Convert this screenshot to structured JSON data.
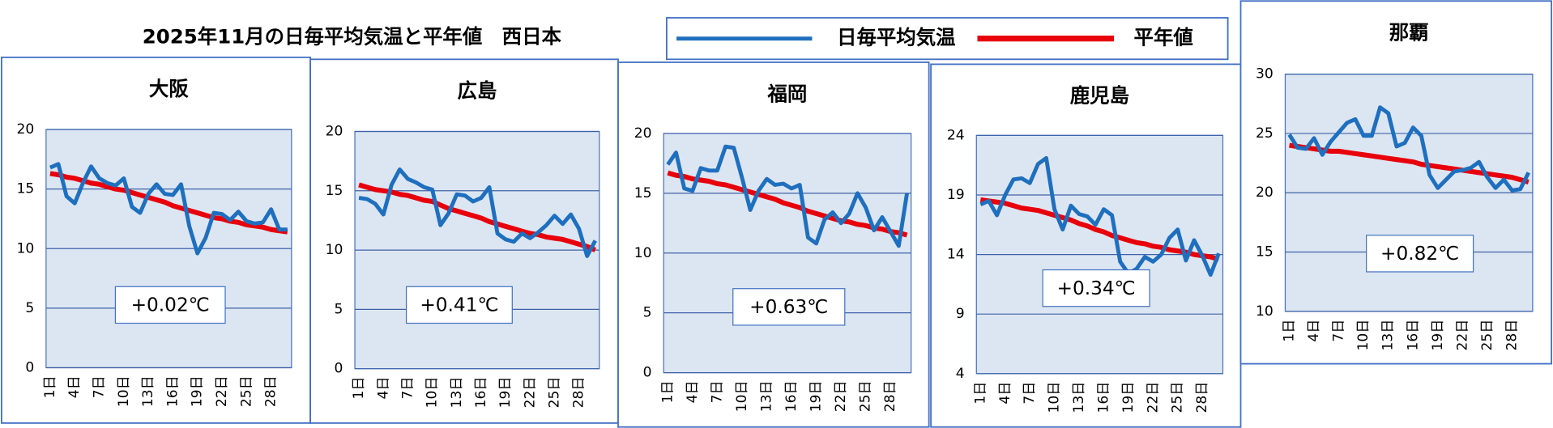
{
  "title": "2025年11月の日毎平均気温と平年値　西日本",
  "chart_data": [
    {
      "type": "line",
      "title": "大阪",
      "categories": [
        "1日",
        null,
        null,
        "4日",
        null,
        null,
        "7日",
        null,
        null,
        "10日",
        null,
        null,
        "13日",
        null,
        null,
        "16日",
        null,
        null,
        "19日",
        null,
        null,
        "22日",
        null,
        null,
        "25日",
        null,
        null,
        "28日",
        null,
        null
      ],
      "series": [
        {
          "name": "日毎平均気温",
          "color": "#1f6fbf",
          "values": [
            16.8,
            17.1,
            14.4,
            13.8,
            15.5,
            16.9,
            15.9,
            15.5,
            15.3,
            15.9,
            13.5,
            13.0,
            14.6,
            15.4,
            14.6,
            14.5,
            15.4,
            11.9,
            9.6,
            10.9,
            13.0,
            12.9,
            12.4,
            13.1,
            12.3,
            12.1,
            12.2,
            13.3,
            11.6,
            11.6
          ]
        },
        {
          "name": "平年値",
          "color": "#e8000b",
          "values": [
            16.3,
            16.2,
            16.0,
            15.9,
            15.7,
            15.5,
            15.4,
            15.2,
            15.0,
            14.9,
            14.7,
            14.5,
            14.3,
            14.1,
            13.9,
            13.6,
            13.4,
            13.2,
            13.0,
            12.8,
            12.6,
            12.5,
            12.3,
            12.2,
            12.0,
            11.9,
            11.8,
            11.6,
            11.5,
            11.4
          ]
        }
      ],
      "ylim": [
        0,
        20
      ],
      "yticks": [
        0,
        5,
        10,
        15,
        20
      ],
      "annotation": "+0.02℃"
    },
    {
      "type": "line",
      "title": "広島",
      "categories": [
        "1日",
        null,
        null,
        "4日",
        null,
        null,
        "7日",
        null,
        null,
        "10日",
        null,
        null,
        "13日",
        null,
        null,
        "16日",
        null,
        null,
        "19日",
        null,
        null,
        "22日",
        null,
        null,
        "25日",
        null,
        null,
        "28日",
        null,
        null
      ],
      "series": [
        {
          "name": "日毎平均気温",
          "color": "#1f6fbf",
          "values": [
            14.4,
            14.3,
            13.9,
            13.0,
            15.5,
            16.8,
            16.0,
            15.7,
            15.3,
            15.1,
            12.1,
            13.1,
            14.7,
            14.6,
            14.1,
            14.4,
            15.3,
            11.4,
            10.9,
            10.7,
            11.4,
            11.0,
            11.5,
            12.1,
            12.9,
            12.2,
            13.0,
            11.8,
            9.5,
            10.8
          ]
        },
        {
          "name": "平年値",
          "color": "#e8000b",
          "values": [
            15.5,
            15.3,
            15.1,
            15.0,
            14.9,
            14.7,
            14.6,
            14.4,
            14.2,
            14.1,
            13.8,
            13.5,
            13.3,
            13.1,
            12.9,
            12.7,
            12.4,
            12.2,
            12.0,
            11.8,
            11.6,
            11.4,
            11.3,
            11.1,
            11.0,
            10.9,
            10.7,
            10.5,
            10.3,
            10.0
          ]
        }
      ],
      "ylim": [
        0,
        20
      ],
      "yticks": [
        0,
        5,
        10,
        15,
        20
      ],
      "annotation": "+0.41℃"
    },
    {
      "type": "line",
      "title": "福岡",
      "categories": [
        "1日",
        null,
        null,
        "4日",
        null,
        null,
        "7日",
        null,
        null,
        "10日",
        null,
        null,
        "13日",
        null,
        null,
        "16日",
        null,
        null,
        "19日",
        null,
        null,
        "22日",
        null,
        null,
        "25日",
        null,
        null,
        "28日",
        null,
        null
      ],
      "series": [
        {
          "name": "日毎平均気温",
          "color": "#1f6fbf",
          "values": [
            17.4,
            18.4,
            15.4,
            15.2,
            17.1,
            16.9,
            16.9,
            18.9,
            18.8,
            16.3,
            13.6,
            15.2,
            16.2,
            15.7,
            15.8,
            15.4,
            15.7,
            11.3,
            10.8,
            12.8,
            13.4,
            12.5,
            13.3,
            15.0,
            13.8,
            11.9,
            13.0,
            11.8,
            10.6,
            15.0
          ]
        },
        {
          "name": "平年値",
          "color": "#e8000b",
          "values": [
            16.7,
            16.5,
            16.4,
            16.2,
            16.1,
            16.0,
            15.8,
            15.7,
            15.5,
            15.3,
            15.1,
            14.9,
            14.7,
            14.5,
            14.2,
            14.0,
            13.8,
            13.5,
            13.3,
            13.1,
            12.9,
            12.7,
            12.6,
            12.4,
            12.3,
            12.1,
            12.0,
            11.8,
            11.7,
            11.5
          ]
        }
      ],
      "ylim": [
        0,
        20
      ],
      "yticks": [
        0,
        5,
        10,
        15,
        20
      ],
      "annotation": "+0.63℃"
    },
    {
      "type": "line",
      "title": "鹿児島",
      "categories": [
        "1日",
        null,
        null,
        "4日",
        null,
        null,
        "7日",
        null,
        null,
        "10日",
        null,
        null,
        "13日",
        null,
        null,
        "16日",
        null,
        null,
        "19日",
        null,
        null,
        "22日",
        null,
        null,
        "25日",
        null,
        null,
        "28日",
        null,
        null
      ],
      "series": [
        {
          "name": "日毎平均気温",
          "color": "#1f6fbf",
          "values": [
            18.2,
            18.5,
            17.3,
            19.0,
            20.3,
            20.4,
            20.0,
            21.6,
            22.1,
            17.8,
            16.1,
            18.1,
            17.4,
            17.2,
            16.5,
            17.8,
            17.3,
            13.4,
            12.4,
            12.8,
            13.8,
            13.4,
            14.0,
            15.4,
            16.1,
            13.5,
            15.2,
            13.9,
            12.3,
            14.1
          ]
        },
        {
          "name": "平年値",
          "color": "#e8000b",
          "values": [
            18.6,
            18.5,
            18.4,
            18.3,
            18.1,
            17.9,
            17.8,
            17.7,
            17.5,
            17.3,
            17.1,
            16.9,
            16.6,
            16.4,
            16.1,
            15.9,
            15.6,
            15.4,
            15.2,
            15.0,
            14.9,
            14.7,
            14.6,
            14.4,
            14.3,
            14.2,
            14.0,
            13.9,
            13.8,
            13.6
          ]
        }
      ],
      "ylim": [
        4,
        24
      ],
      "yticks": [
        4,
        9,
        14,
        19,
        24
      ],
      "annotation": "+0.34℃"
    },
    {
      "type": "line",
      "title": "那覇",
      "categories": [
        "1日",
        null,
        null,
        "4日",
        null,
        null,
        "7日",
        null,
        null,
        "10日",
        null,
        null,
        "13日",
        null,
        null,
        "16日",
        null,
        null,
        "19日",
        null,
        null,
        "22日",
        null,
        null,
        "25日",
        null,
        null,
        "28日",
        null,
        null
      ],
      "series": [
        {
          "name": "日毎平均気温",
          "color": "#1f6fbf",
          "values": [
            24.9,
            23.8,
            23.7,
            24.6,
            23.2,
            24.3,
            25.1,
            25.9,
            26.2,
            24.8,
            24.8,
            27.2,
            26.7,
            23.9,
            24.2,
            25.5,
            24.8,
            21.5,
            20.4,
            21.1,
            21.8,
            21.9,
            22.1,
            22.6,
            21.3,
            20.4,
            21.1,
            20.2,
            20.3,
            21.7
          ]
        },
        {
          "name": "平年値",
          "color": "#e8000b",
          "values": [
            24.0,
            23.9,
            23.8,
            23.7,
            23.6,
            23.5,
            23.5,
            23.4,
            23.3,
            23.2,
            23.1,
            23.0,
            22.9,
            22.8,
            22.7,
            22.6,
            22.4,
            22.3,
            22.2,
            22.1,
            22.0,
            21.9,
            21.8,
            21.7,
            21.6,
            21.5,
            21.4,
            21.3,
            21.1,
            20.9
          ]
        }
      ],
      "ylim": [
        10,
        30
      ],
      "yticks": [
        10,
        15,
        20,
        25,
        30
      ],
      "annotation": "+0.82℃"
    }
  ]
}
